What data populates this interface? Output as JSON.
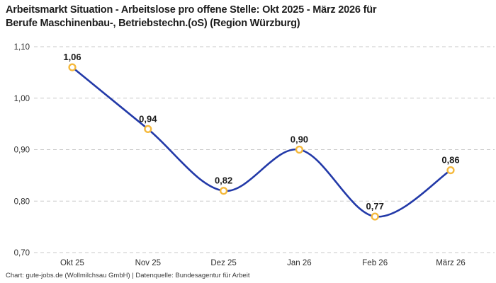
{
  "title": "Arbeitsmarkt Situation - Arbeitslose pro offene Stelle: Okt 2025 - März 2026 für\nBerufe Maschinenbau-, Betriebstechn.(oS) (Region Würzburg)",
  "footer": "Chart: gute-jobs.de (Wollmilchsau GmbH) | Datenquelle: Bundesagentur für Arbeit",
  "chart_data": {
    "type": "line",
    "title": "Arbeitsmarkt Situation - Arbeitslose pro offene Stelle: Okt 2025 - März 2026 für Berufe Maschinenbau-, Betriebstechn.(oS) (Region Würzburg)",
    "categories": [
      "Okt 25",
      "Nov 25",
      "Dez 25",
      "Jan 26",
      "Feb 26",
      "März 26"
    ],
    "values": [
      1.06,
      0.94,
      0.82,
      0.9,
      0.77,
      0.86
    ],
    "value_labels": [
      "1,06",
      "0,94",
      "0,82",
      "0,90",
      "0,77",
      "0,86"
    ],
    "xlabel": "",
    "ylabel": "",
    "ylim": [
      0.7,
      1.1
    ],
    "y_ticks": [
      0.7,
      0.8,
      0.9,
      1.0,
      1.1
    ],
    "y_tick_labels": [
      "0,70",
      "0,80",
      "0,90",
      "1,00",
      "1,10"
    ],
    "grid": "horizontal-dashed",
    "legend": "none",
    "line_smoothing": "spline",
    "colors": {
      "line": "#2239a8",
      "marker_ring": "#f5b93c",
      "marker_fill": "#ffffff",
      "grid": "#c9c9c9",
      "label": "#1a1a1a"
    }
  }
}
